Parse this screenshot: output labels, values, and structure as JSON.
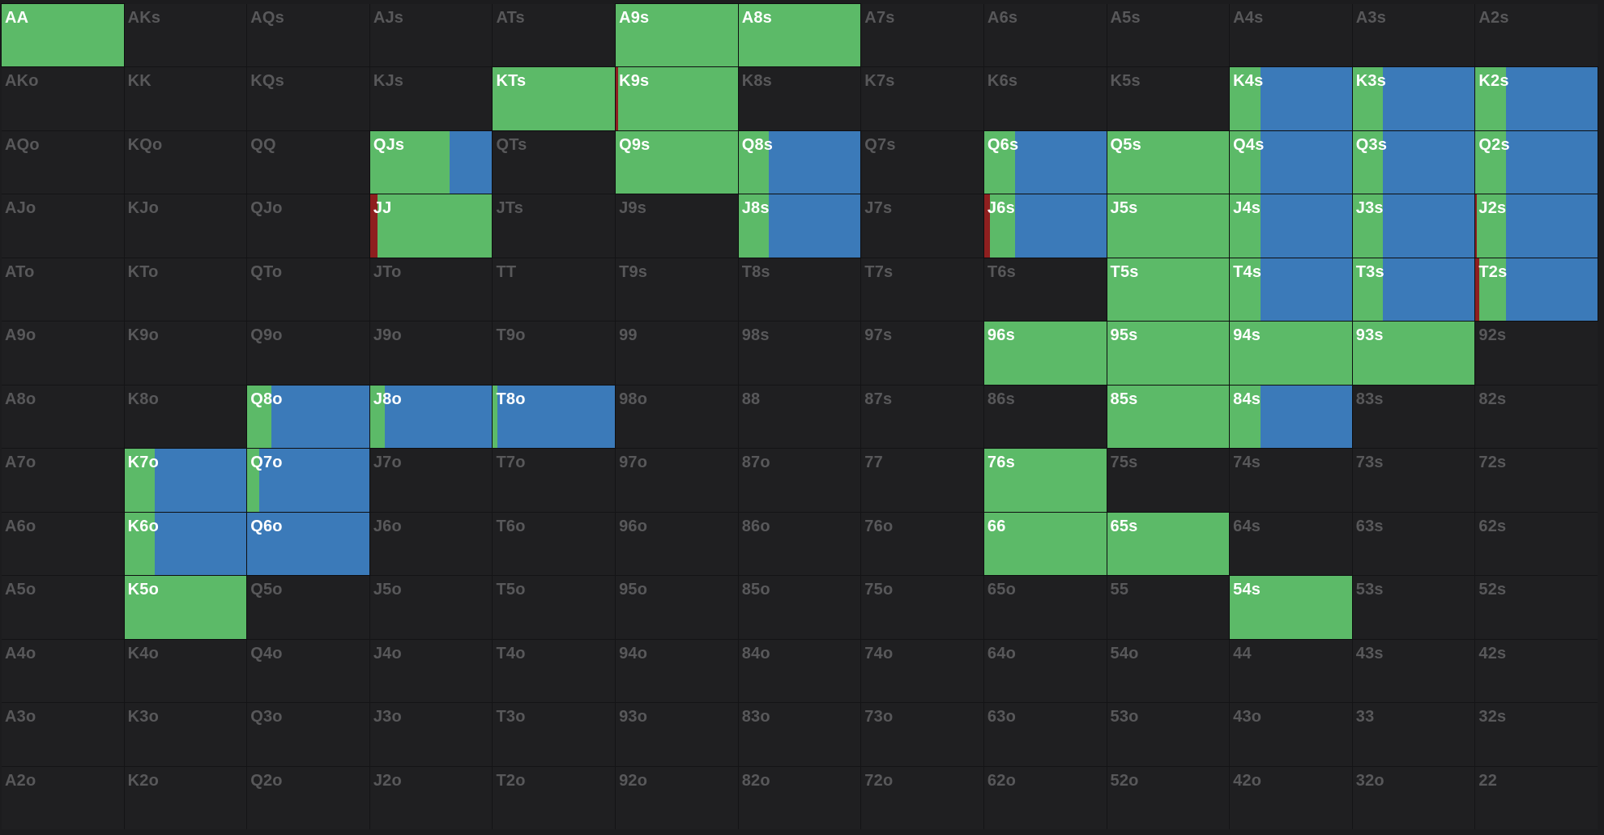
{
  "colors": {
    "raise": "#5cba68",
    "call": "#3b7ab9",
    "allin": "#8e1f1f",
    "empty_cell": "#1f1f21",
    "inactive_text": "#58585a",
    "active_text": "#ffffff"
  },
  "grid": [
    [
      "AA",
      "AKs",
      "AQs",
      "AJs",
      "ATs",
      "A9s",
      "A8s",
      "A7s",
      "A6s",
      "A5s",
      "A4s",
      "A3s",
      "A2s"
    ],
    [
      "AKo",
      "KK",
      "KQs",
      "KJs",
      "KTs",
      "K9s",
      "K8s",
      "K7s",
      "K6s",
      "K5s",
      "K4s",
      "K3s",
      "K2s"
    ],
    [
      "AQo",
      "KQo",
      "QQ",
      "QJs",
      "QTs",
      "Q9s",
      "Q8s",
      "Q7s",
      "Q6s",
      "Q5s",
      "Q4s",
      "Q3s",
      "Q2s"
    ],
    [
      "AJo",
      "KJo",
      "QJo",
      "JJ",
      "JTs",
      "J9s",
      "J8s",
      "J7s",
      "J6s",
      "J5s",
      "J4s",
      "J3s",
      "J2s"
    ],
    [
      "ATo",
      "KTo",
      "QTo",
      "JTo",
      "TT",
      "T9s",
      "T8s",
      "T7s",
      "T6s",
      "T5s",
      "T4s",
      "T3s",
      "T2s"
    ],
    [
      "A9o",
      "K9o",
      "Q9o",
      "J9o",
      "T9o",
      "99",
      "98s",
      "97s",
      "96s",
      "95s",
      "94s",
      "93s",
      "92s"
    ],
    [
      "A8o",
      "K8o",
      "Q8o",
      "J8o",
      "T8o",
      "98o",
      "88",
      "87s",
      "86s",
      "85s",
      "84s",
      "83s",
      "82s"
    ],
    [
      "A7o",
      "K7o",
      "Q7o",
      "J7o",
      "T7o",
      "97o",
      "87o",
      "77",
      "76s",
      "75s",
      "74s",
      "73s",
      "72s"
    ],
    [
      "A6o",
      "K6o",
      "Q6o",
      "J6o",
      "T6o",
      "96o",
      "86o",
      "76o",
      "66",
      "65s",
      "64s",
      "63s",
      "62s"
    ],
    [
      "A5o",
      "K5o",
      "Q5o",
      "J5o",
      "T5o",
      "95o",
      "85o",
      "75o",
      "65o",
      "55",
      "54s",
      "53s",
      "52s"
    ],
    [
      "A4o",
      "K4o",
      "Q4o",
      "J4o",
      "T4o",
      "94o",
      "84o",
      "74o",
      "64o",
      "54o",
      "44",
      "43s",
      "42s"
    ],
    [
      "A3o",
      "K3o",
      "Q3o",
      "J3o",
      "T3o",
      "93o",
      "83o",
      "73o",
      "63o",
      "53o",
      "43o",
      "33",
      "32s"
    ],
    [
      "A2o",
      "K2o",
      "Q2o",
      "J2o",
      "T2o",
      "92o",
      "82o",
      "72o",
      "62o",
      "52o",
      "42o",
      "32o",
      "22"
    ]
  ],
  "frequencies": {
    "AA": {
      "allin": 0,
      "raise": 100,
      "call": 0
    },
    "A9s": {
      "allin": 0,
      "raise": 100,
      "call": 0
    },
    "A8s": {
      "allin": 0,
      "raise": 100,
      "call": 0
    },
    "KTs": {
      "allin": 0,
      "raise": 100,
      "call": 0
    },
    "K9s": {
      "allin": 2,
      "raise": 98,
      "call": 0
    },
    "K4s": {
      "allin": 0,
      "raise": 25,
      "call": 75
    },
    "K3s": {
      "allin": 0,
      "raise": 25,
      "call": 75
    },
    "K2s": {
      "allin": 0,
      "raise": 25,
      "call": 75
    },
    "QJs": {
      "allin": 0,
      "raise": 65,
      "call": 35
    },
    "Q9s": {
      "allin": 0,
      "raise": 100,
      "call": 0
    },
    "Q8s": {
      "allin": 0,
      "raise": 25,
      "call": 75
    },
    "Q6s": {
      "allin": 0,
      "raise": 25,
      "call": 75
    },
    "Q5s": {
      "allin": 0,
      "raise": 100,
      "call": 0
    },
    "Q4s": {
      "allin": 0,
      "raise": 25,
      "call": 75
    },
    "Q3s": {
      "allin": 0,
      "raise": 25,
      "call": 75
    },
    "Q2s": {
      "allin": 0,
      "raise": 25,
      "call": 75
    },
    "JJ": {
      "allin": 6,
      "raise": 94,
      "call": 0
    },
    "J8s": {
      "allin": 0,
      "raise": 25,
      "call": 75
    },
    "J6s": {
      "allin": 5,
      "raise": 20,
      "call": 75
    },
    "J5s": {
      "allin": 0,
      "raise": 100,
      "call": 0
    },
    "J4s": {
      "allin": 0,
      "raise": 25,
      "call": 75
    },
    "J3s": {
      "allin": 0,
      "raise": 25,
      "call": 75
    },
    "J2s": {
      "allin": 1,
      "raise": 24,
      "call": 75
    },
    "T5s": {
      "allin": 0,
      "raise": 100,
      "call": 0
    },
    "T4s": {
      "allin": 0,
      "raise": 25,
      "call": 75
    },
    "T3s": {
      "allin": 0,
      "raise": 25,
      "call": 75
    },
    "T2s": {
      "allin": 3,
      "raise": 22,
      "call": 75
    },
    "96s": {
      "allin": 0,
      "raise": 100,
      "call": 0
    },
    "95s": {
      "allin": 0,
      "raise": 100,
      "call": 0
    },
    "94s": {
      "allin": 0,
      "raise": 100,
      "call": 0
    },
    "93s": {
      "allin": 0,
      "raise": 100,
      "call": 0
    },
    "Q8o": {
      "allin": 0,
      "raise": 20,
      "call": 80
    },
    "J8o": {
      "allin": 0,
      "raise": 12,
      "call": 88
    },
    "T8o": {
      "allin": 0,
      "raise": 4,
      "call": 96
    },
    "85s": {
      "allin": 0,
      "raise": 100,
      "call": 0
    },
    "84s": {
      "allin": 0,
      "raise": 25,
      "call": 75
    },
    "K7o": {
      "allin": 0,
      "raise": 25,
      "call": 75
    },
    "Q7o": {
      "allin": 0,
      "raise": 10,
      "call": 90
    },
    "76s": {
      "allin": 0,
      "raise": 100,
      "call": 0
    },
    "K6o": {
      "allin": 0,
      "raise": 25,
      "call": 75
    },
    "Q6o": {
      "allin": 0,
      "raise": 0,
      "call": 100
    },
    "66": {
      "allin": 0,
      "raise": 100,
      "call": 0
    },
    "65s": {
      "allin": 0,
      "raise": 100,
      "call": 0
    },
    "K5o": {
      "allin": 0,
      "raise": 100,
      "call": 0
    },
    "54s": {
      "allin": 0,
      "raise": 100,
      "call": 0
    }
  }
}
